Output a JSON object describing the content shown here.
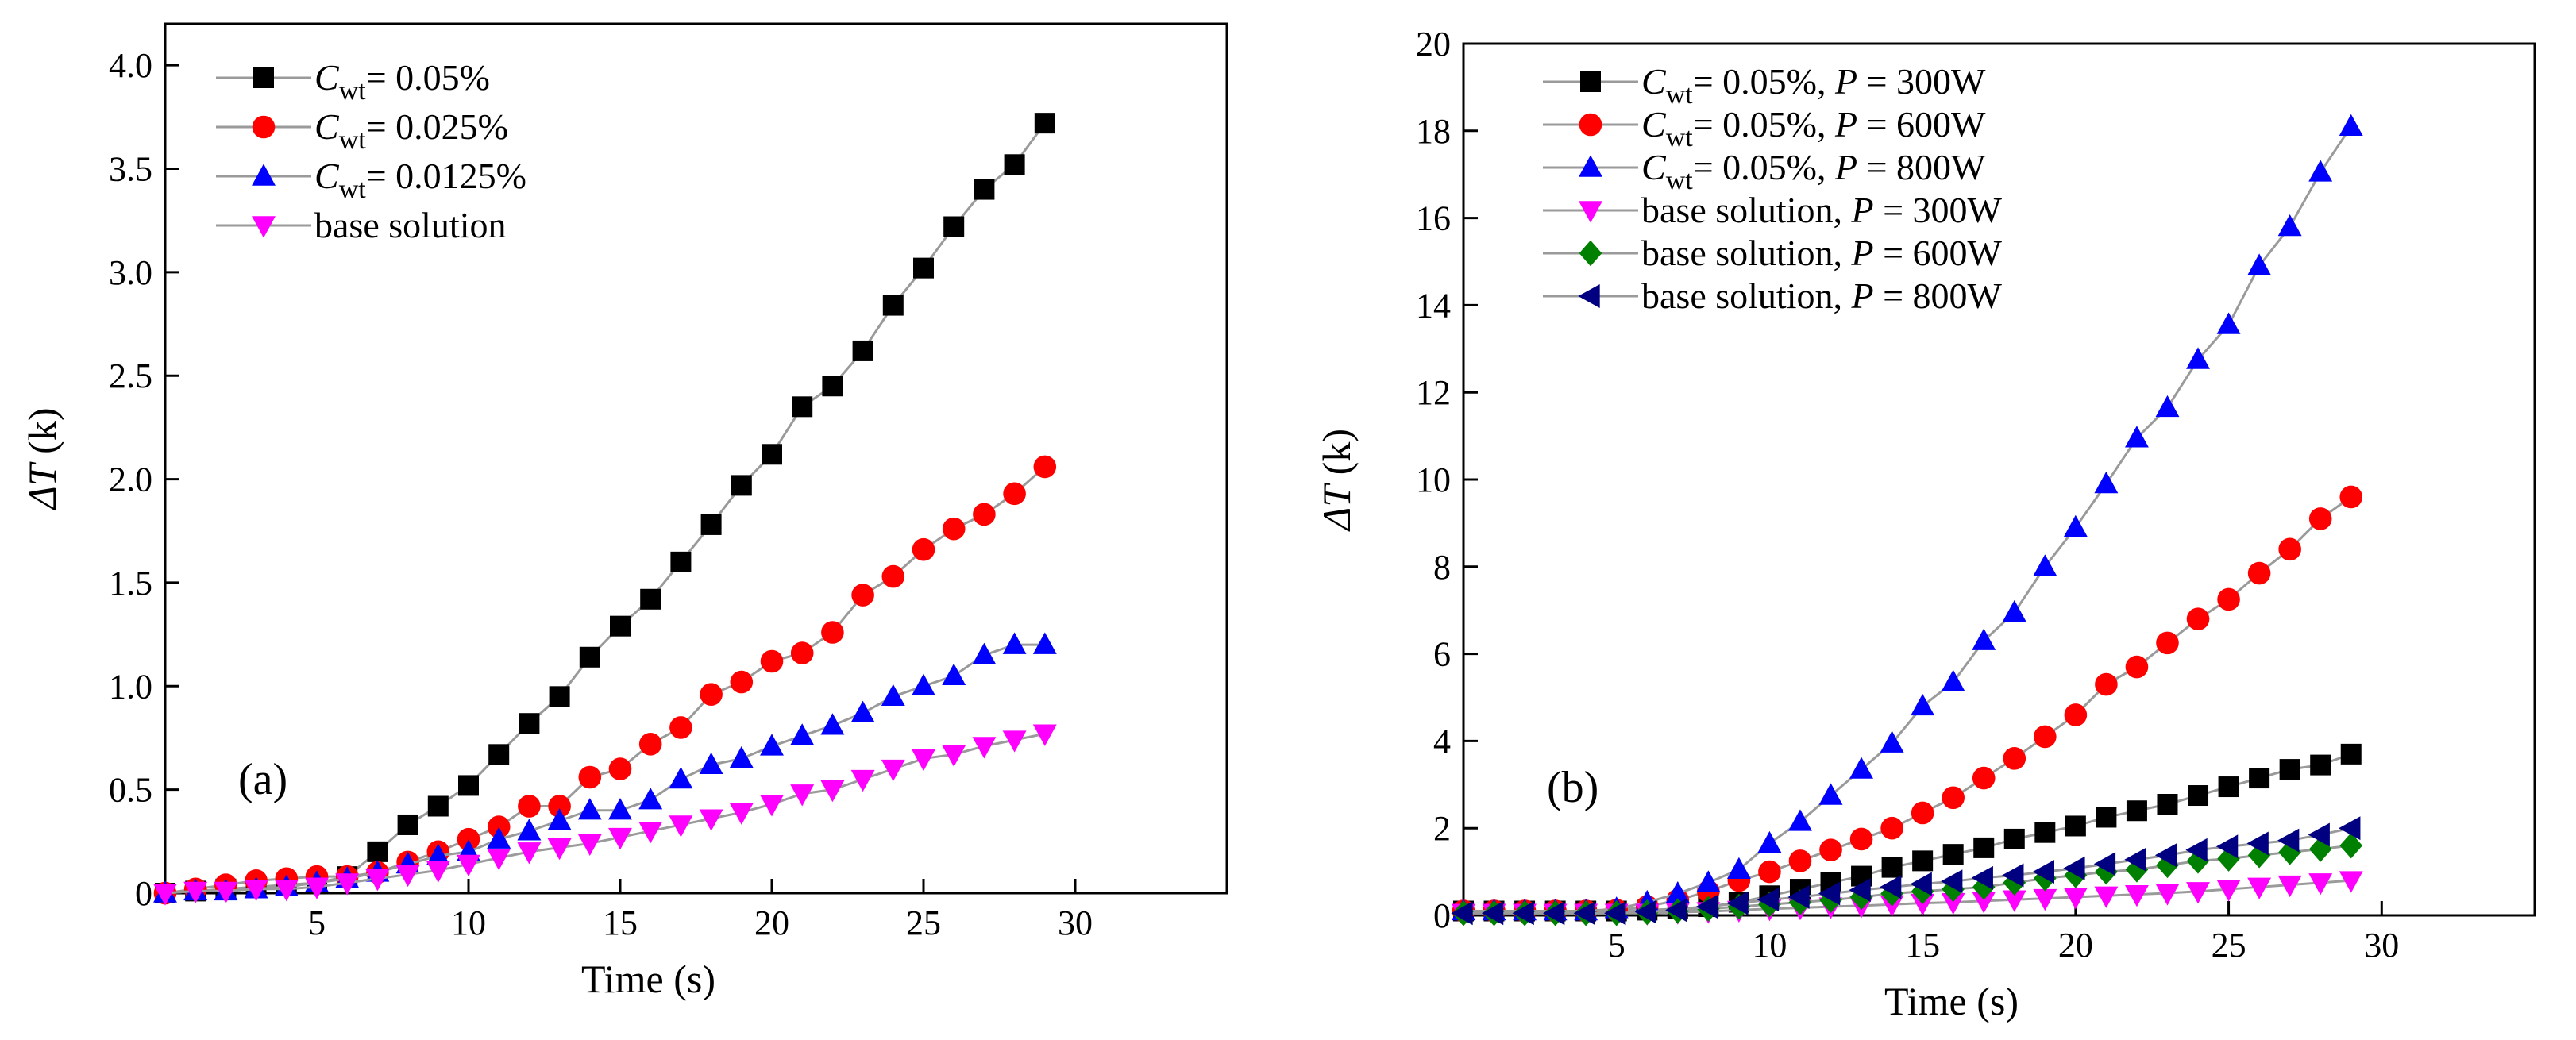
{
  "chart_data": [
    {
      "type": "line",
      "panel_label": "(a)",
      "xlabel": "Time (s)",
      "ylabel_symbol": "ΔT",
      "ylabel_unit": "(k)",
      "xlim": [
        0,
        35
      ],
      "ylim": [
        0,
        4.2
      ],
      "xticks": [
        5,
        10,
        15,
        20,
        25,
        30
      ],
      "yticks": [
        0,
        0.5,
        1.0,
        1.5,
        2.0,
        2.5,
        3.0,
        3.5,
        4.0
      ],
      "ytick_labels": [
        "0",
        "0.5",
        "1.0",
        "1.5",
        "2.0",
        "2.5",
        "3.0",
        "3.5",
        "4.0"
      ],
      "grid": false,
      "legend_position": "top-left",
      "x": [
        0,
        1,
        2,
        3,
        4,
        5,
        6,
        7,
        8,
        9,
        10,
        11,
        12,
        13,
        14,
        15,
        16,
        17,
        18,
        19,
        20,
        21,
        22,
        23,
        24,
        25,
        26,
        27,
        28,
        29
      ],
      "series": [
        {
          "legend_prefix": "C",
          "legend_sub": "wt",
          "legend_suffix": "= 0.05%",
          "marker": "square",
          "color": "#000000",
          "values": [
            0,
            0.01,
            0.02,
            0.03,
            0.04,
            0.05,
            0.08,
            0.2,
            0.33,
            0.42,
            0.52,
            0.67,
            0.82,
            0.95,
            1.14,
            1.29,
            1.42,
            1.6,
            1.78,
            1.97,
            2.12,
            2.35,
            2.45,
            2.62,
            2.84,
            3.02,
            3.22,
            3.4,
            3.52,
            3.72
          ]
        },
        {
          "legend_prefix": "C",
          "legend_sub": "wt",
          "legend_suffix": "= 0.025%",
          "marker": "circle",
          "color": "#ff0000",
          "values": [
            0,
            0.02,
            0.04,
            0.06,
            0.07,
            0.08,
            0.08,
            0.1,
            0.15,
            0.2,
            0.26,
            0.32,
            0.42,
            0.42,
            0.56,
            0.6,
            0.72,
            0.8,
            0.96,
            1.02,
            1.12,
            1.16,
            1.26,
            1.44,
            1.53,
            1.66,
            1.76,
            1.83,
            1.93,
            2.06
          ]
        },
        {
          "legend_prefix": "C",
          "legend_sub": "wt",
          "legend_suffix": "= 0.0125%",
          "marker": "triangle-up",
          "color": "#0000ff",
          "values": [
            0,
            0.01,
            0.01,
            0.02,
            0.03,
            0.05,
            0.07,
            0.1,
            0.14,
            0.18,
            0.2,
            0.26,
            0.3,
            0.35,
            0.4,
            0.4,
            0.45,
            0.55,
            0.62,
            0.65,
            0.71,
            0.76,
            0.81,
            0.87,
            0.95,
            1.0,
            1.05,
            1.15,
            1.2,
            1.2
          ]
        },
        {
          "legend_prefix": "",
          "legend_sub": "",
          "legend_suffix": "base solution",
          "marker": "triangle-down",
          "color": "#ff00ff",
          "values": [
            0,
            0.01,
            0.01,
            0.02,
            0.02,
            0.03,
            0.05,
            0.07,
            0.09,
            0.11,
            0.14,
            0.17,
            0.2,
            0.22,
            0.24,
            0.27,
            0.3,
            0.33,
            0.36,
            0.39,
            0.43,
            0.48,
            0.5,
            0.55,
            0.6,
            0.65,
            0.67,
            0.71,
            0.74,
            0.77
          ]
        }
      ]
    },
    {
      "type": "line",
      "panel_label": "(b)",
      "xlabel": "Time (s)",
      "ylabel_symbol": "ΔT",
      "ylabel_unit": "(k)",
      "xlim": [
        0,
        35
      ],
      "ylim": [
        0,
        20
      ],
      "xticks": [
        5,
        10,
        15,
        20,
        25,
        30
      ],
      "yticks": [
        0,
        2,
        4,
        6,
        8,
        10,
        12,
        14,
        16,
        18,
        20
      ],
      "ytick_labels": [
        "0",
        "2",
        "4",
        "6",
        "8",
        "10",
        "12",
        "14",
        "16",
        "18",
        "20"
      ],
      "grid": false,
      "legend_position": "top-left",
      "x": [
        0,
        1,
        2,
        3,
        4,
        5,
        6,
        7,
        8,
        9,
        10,
        11,
        12,
        13,
        14,
        15,
        16,
        17,
        18,
        19,
        20,
        21,
        22,
        23,
        24,
        25,
        26,
        27,
        28,
        29
      ],
      "series": [
        {
          "legend_prefix": "C",
          "legend_sub": "wt",
          "legend_suffix": "= 0.05%, ",
          "legend_p_label": "P",
          "legend_p_value": " = 300W",
          "marker": "square",
          "color": "#000000",
          "values": [
            0.1,
            0.1,
            0.1,
            0.1,
            0.1,
            0.1,
            0.12,
            0.15,
            0.2,
            0.3,
            0.45,
            0.6,
            0.75,
            0.9,
            1.1,
            1.25,
            1.4,
            1.55,
            1.75,
            1.9,
            2.05,
            2.25,
            2.4,
            2.55,
            2.75,
            2.95,
            3.15,
            3.35,
            3.45,
            3.7
          ]
        },
        {
          "legend_prefix": "C",
          "legend_sub": "wt",
          "legend_suffix": "= 0.05%, ",
          "legend_p_label": "P",
          "legend_p_value": " = 600W",
          "marker": "circle",
          "color": "#ff0000",
          "values": [
            0.1,
            0.1,
            0.1,
            0.1,
            0.1,
            0.12,
            0.2,
            0.35,
            0.55,
            0.8,
            1.0,
            1.25,
            1.5,
            1.75,
            2.0,
            2.35,
            2.7,
            3.15,
            3.6,
            4.1,
            4.6,
            5.3,
            5.7,
            6.25,
            6.8,
            7.25,
            7.85,
            8.4,
            9.1,
            9.6
          ]
        },
        {
          "legend_prefix": "C",
          "legend_sub": "wt",
          "legend_suffix": "= 0.05%, ",
          "legend_p_label": "P",
          "legend_p_value": " = 800W",
          "marker": "triangle-up",
          "color": "#0000ff",
          "values": [
            0.1,
            0.1,
            0.1,
            0.1,
            0.1,
            0.15,
            0.3,
            0.5,
            0.75,
            1.05,
            1.65,
            2.15,
            2.75,
            3.35,
            3.95,
            4.8,
            5.35,
            6.3,
            6.95,
            8.0,
            8.9,
            9.9,
            10.95,
            11.65,
            12.75,
            13.55,
            14.9,
            15.8,
            17.05,
            18.1
          ]
        },
        {
          "legend_prefix": "",
          "legend_sub": "",
          "legend_suffix": "base solution, ",
          "legend_p_label": "P",
          "legend_p_value": " = 300W",
          "marker": "triangle-down",
          "color": "#ff00ff",
          "values": [
            0.05,
            0.05,
            0.05,
            0.05,
            0.05,
            0.05,
            0.05,
            0.07,
            0.09,
            0.12,
            0.15,
            0.17,
            0.2,
            0.22,
            0.25,
            0.28,
            0.3,
            0.33,
            0.36,
            0.39,
            0.42,
            0.45,
            0.48,
            0.51,
            0.55,
            0.6,
            0.65,
            0.7,
            0.75,
            0.8
          ]
        },
        {
          "legend_prefix": "",
          "legend_sub": "",
          "legend_suffix": "base solution, ",
          "legend_p_label": "P",
          "legend_p_value": " = 600W",
          "marker": "diamond",
          "color": "#008000",
          "values": [
            0.05,
            0.05,
            0.05,
            0.05,
            0.05,
            0.05,
            0.07,
            0.1,
            0.15,
            0.2,
            0.25,
            0.3,
            0.35,
            0.42,
            0.5,
            0.55,
            0.6,
            0.65,
            0.75,
            0.85,
            0.92,
            1.0,
            1.05,
            1.15,
            1.25,
            1.3,
            1.38,
            1.45,
            1.52,
            1.6
          ]
        },
        {
          "legend_prefix": "",
          "legend_sub": "",
          "legend_suffix": "base solution, ",
          "legend_p_label": "P",
          "legend_p_value": " = 800W",
          "marker": "triangle-left",
          "color": "#000080",
          "values": [
            0.05,
            0.05,
            0.05,
            0.05,
            0.05,
            0.05,
            0.08,
            0.12,
            0.2,
            0.28,
            0.36,
            0.42,
            0.5,
            0.58,
            0.65,
            0.72,
            0.78,
            0.86,
            0.92,
            1.0,
            1.08,
            1.18,
            1.28,
            1.38,
            1.5,
            1.58,
            1.65,
            1.72,
            1.85,
            2.0
          ]
        }
      ]
    }
  ]
}
